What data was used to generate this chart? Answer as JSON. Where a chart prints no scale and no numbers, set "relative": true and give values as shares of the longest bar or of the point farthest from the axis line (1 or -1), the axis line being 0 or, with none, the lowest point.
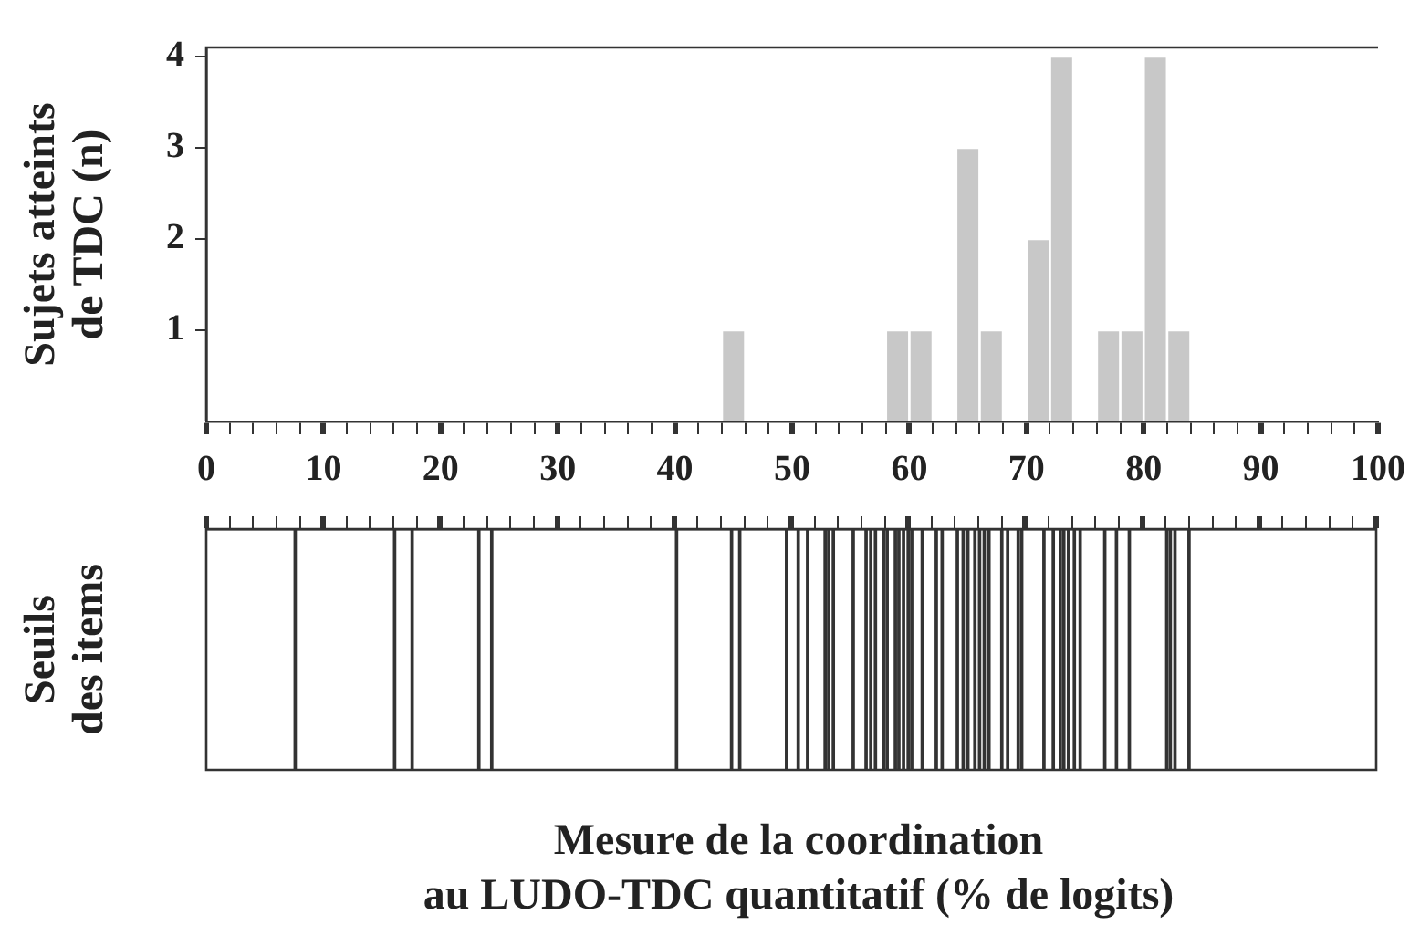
{
  "chart_data": [
    {
      "type": "histogram",
      "ylabel": "Sujets atteints\nde TDC (n)",
      "color": "#c8c8c8",
      "bins": [
        44,
        46,
        48,
        50,
        52,
        54,
        56,
        58,
        60,
        62,
        64,
        66,
        68,
        70,
        72,
        74,
        76,
        78,
        80,
        82,
        84
      ],
      "values": [
        1,
        0,
        0,
        0,
        0,
        0,
        0,
        1,
        1,
        0,
        3,
        1,
        0,
        2,
        4,
        0,
        1,
        1,
        4,
        1
      ],
      "xlim": [
        0,
        100
      ],
      "ylim": [
        0,
        4.1
      ],
      "yticks": [
        1,
        2,
        3,
        4
      ],
      "xticks": [
        0,
        {
          "value": 2,
          "label": null
        },
        {
          "value": 4,
          "label": null
        },
        {
          "value": 6,
          "label": null
        },
        {
          "value": 8,
          "label": null
        },
        10,
        {
          "value": 12,
          "label": null
        },
        {
          "value": 14,
          "label": null
        },
        {
          "value": 16,
          "label": null
        },
        {
          "value": 18,
          "label": null
        },
        20,
        {
          "value": 22,
          "label": null
        },
        {
          "value": 24,
          "label": null
        },
        {
          "value": 26,
          "label": null
        },
        {
          "value": 28,
          "label": null
        },
        30,
        {
          "value": 32,
          "label": null
        },
        {
          "value": 34,
          "label": null
        },
        {
          "value": 36,
          "label": null
        },
        {
          "value": 38,
          "label": null
        },
        40,
        {
          "value": 42,
          "label": null
        },
        {
          "value": 44,
          "label": null
        },
        {
          "value": 46,
          "label": null
        },
        {
          "value": 48,
          "label": null
        },
        50,
        {
          "value": 52,
          "label": null
        },
        {
          "value": 54,
          "label": null
        },
        {
          "value": 56,
          "label": null
        },
        {
          "value": 58,
          "label": null
        },
        60,
        {
          "value": 62,
          "label": null
        },
        {
          "value": 64,
          "label": null
        },
        {
          "value": 66,
          "label": null
        },
        {
          "value": 68,
          "label": null
        },
        70,
        {
          "value": 72,
          "label": null
        },
        {
          "value": 74,
          "label": null
        },
        {
          "value": 76,
          "label": null
        },
        {
          "value": 78,
          "label": null
        },
        80,
        {
          "value": 82,
          "label": null
        },
        {
          "value": 84,
          "label": null
        },
        {
          "value": 86,
          "label": null
        },
        {
          "value": 88,
          "label": null
        },
        90,
        {
          "value": 92,
          "label": null
        },
        {
          "value": 94,
          "label": null
        },
        {
          "value": 96,
          "label": null
        },
        {
          "value": 98,
          "label": null
        },
        100
      ]
    },
    {
      "type": "bar",
      "relative": true,
      "ylabel": "Seuils\ndes items",
      "xlabel": "Mesure de la coordination\nau LUDO-TDC quantitatif (% de logits)",
      "color": "#333333",
      "tick_labels": false,
      "x": [
        7.6,
        16.1,
        17.6,
        23.3,
        24.4,
        40.2,
        44.9,
        45.6,
        49.6,
        50.6,
        51.4,
        52.9,
        53.2,
        53.6,
        55.3,
        56.4,
        56.8,
        57.2,
        57.9,
        58.2,
        58.9,
        59.2,
        59.6,
        60.0,
        60.3,
        61.2,
        62.4,
        62.9,
        64.2,
        64.7,
        65.1,
        65.7,
        66.1,
        66.5,
        66.9,
        68.0,
        68.5,
        69.4,
        69.7,
        71.6,
        72.4,
        73.0,
        73.3,
        73.7,
        74.2,
        74.7,
        76.8,
        77.8,
        78.9,
        82.1,
        82.4,
        82.8,
        84.0
      ],
      "values": [
        1,
        1,
        1,
        1,
        1,
        1,
        1,
        1,
        1,
        1,
        1,
        1,
        1,
        1,
        1,
        1,
        1,
        1,
        1,
        1,
        1,
        1,
        1,
        1,
        1,
        1,
        1,
        1,
        1,
        1,
        1,
        1,
        1,
        1,
        1,
        1,
        1,
        1,
        1,
        1,
        1,
        1,
        1,
        1,
        1,
        1,
        1,
        1,
        1,
        1,
        1,
        1,
        1
      ],
      "xlim": [
        0,
        100
      ],
      "xticks": [
        0,
        {
          "value": 2,
          "label": null
        },
        {
          "value": 4,
          "label": null
        },
        {
          "value": 6,
          "label": null
        },
        {
          "value": 8,
          "label": null
        },
        10,
        {
          "value": 12,
          "label": null
        },
        {
          "value": 14,
          "label": null
        },
        {
          "value": 16,
          "label": null
        },
        {
          "value": 18,
          "label": null
        },
        20,
        {
          "value": 22,
          "label": null
        },
        {
          "value": 24,
          "label": null
        },
        {
          "value": 26,
          "label": null
        },
        {
          "value": 28,
          "label": null
        },
        30,
        {
          "value": 32,
          "label": null
        },
        {
          "value": 34,
          "label": null
        },
        {
          "value": 36,
          "label": null
        },
        {
          "value": 38,
          "label": null
        },
        40,
        {
          "value": 42,
          "label": null
        },
        {
          "value": 44,
          "label": null
        },
        {
          "value": 46,
          "label": null
        },
        {
          "value": 48,
          "label": null
        },
        50,
        {
          "value": 52,
          "label": null
        },
        {
          "value": 54,
          "label": null
        },
        {
          "value": 56,
          "label": null
        },
        {
          "value": 58,
          "label": null
        },
        60,
        {
          "value": 62,
          "label": null
        },
        {
          "value": 64,
          "label": null
        },
        {
          "value": 66,
          "label": null
        },
        {
          "value": 68,
          "label": null
        },
        70,
        {
          "value": 72,
          "label": null
        },
        {
          "value": 74,
          "label": null
        },
        {
          "value": 76,
          "label": null
        },
        {
          "value": 78,
          "label": null
        },
        80,
        {
          "value": 82,
          "label": null
        },
        {
          "value": 84,
          "label": null
        },
        {
          "value": 86,
          "label": null
        },
        {
          "value": 88,
          "label": null
        },
        90,
        {
          "value": 92,
          "label": null
        },
        {
          "value": 94,
          "label": null
        },
        {
          "value": 96,
          "label": null
        },
        {
          "value": 98,
          "label": null
        },
        100
      ]
    }
  ]
}
